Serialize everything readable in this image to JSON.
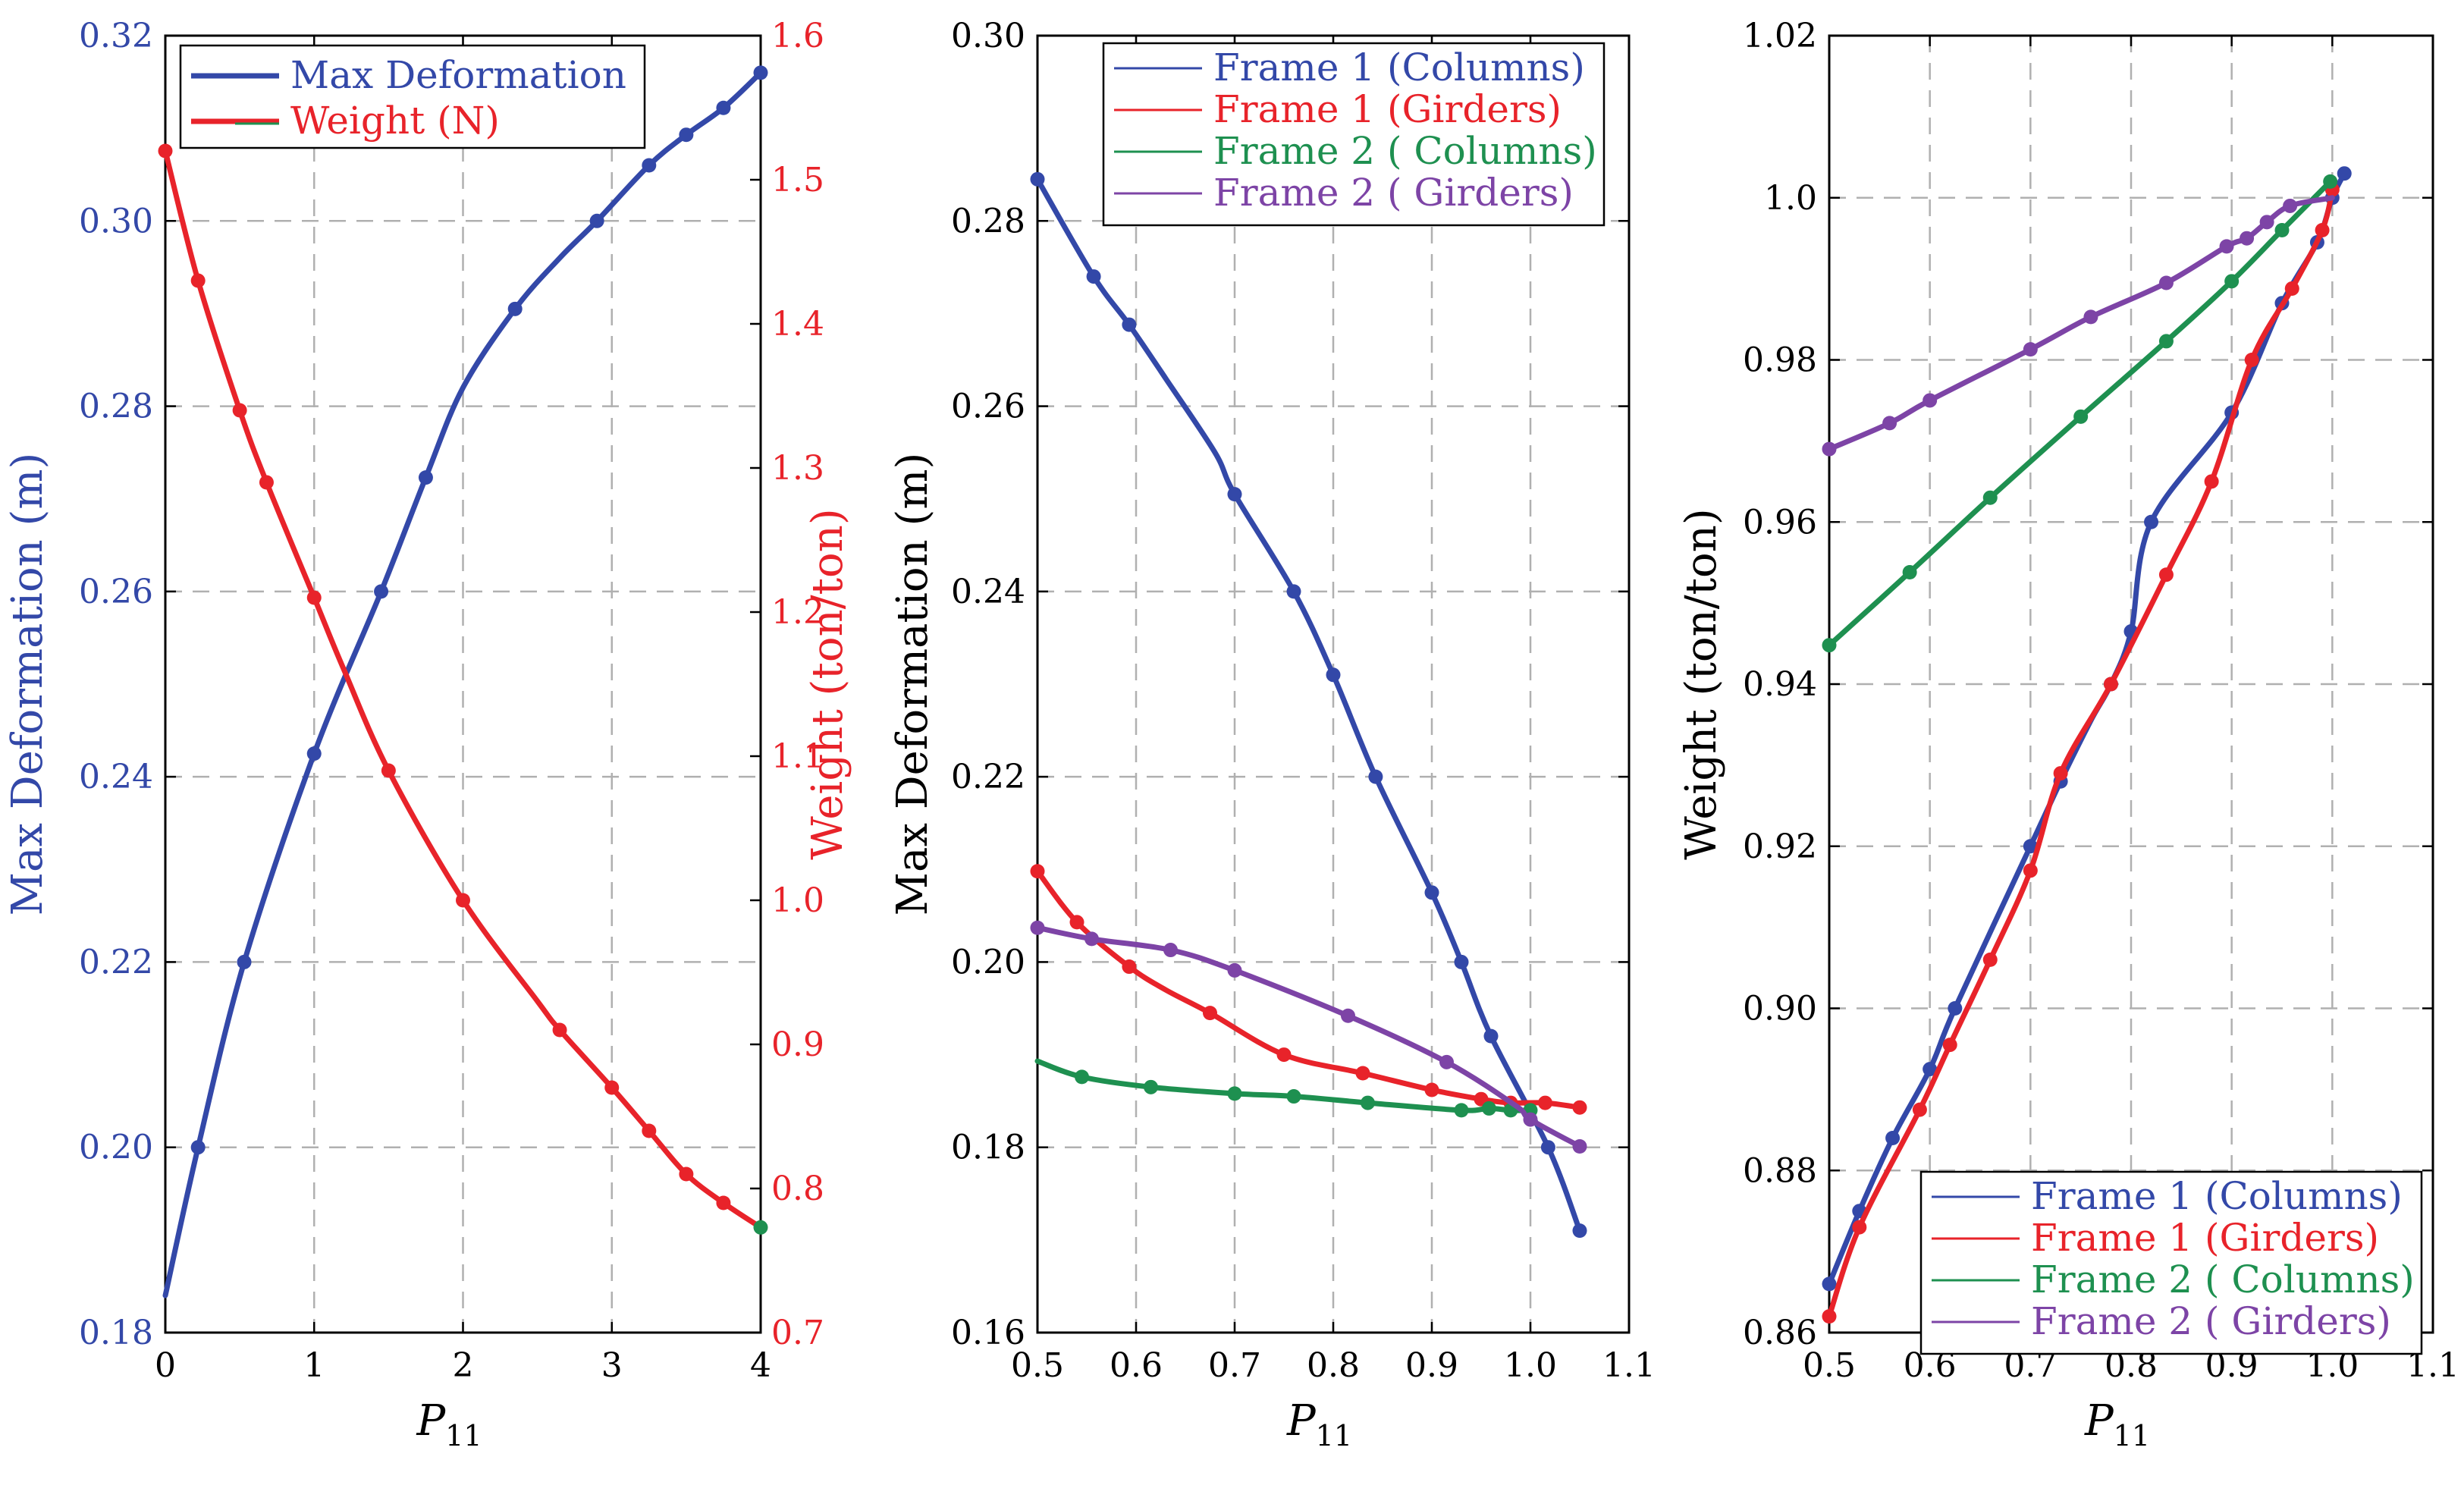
{
  "colors": {
    "blue": "#3348a8",
    "red": "#e8232a",
    "green": "#1e9050",
    "purple": "#7d44a6"
  },
  "chart_data": [
    {
      "type": "line",
      "panel": "left",
      "xlabel": "P",
      "xlabel_sub": "11",
      "ylabel": "Max Deformation (m)",
      "y2label": "Weight (ton/ton)",
      "xlim": [
        0,
        4
      ],
      "ylim": [
        0.18,
        0.32
      ],
      "y2lim": [
        0.7,
        1.6
      ],
      "xticks": [
        "0",
        "1",
        "2",
        "3",
        "4"
      ],
      "yticks": [
        "0.18",
        "0.20",
        "0.22",
        "0.24",
        "0.26",
        "0.28",
        "0.30",
        "0.32"
      ],
      "y2ticks": [
        "0.7",
        "0.8",
        "0.9",
        "1.0",
        "1.1",
        "1.2",
        "1.3",
        "1.4",
        "1.5",
        "1.6"
      ],
      "grid": true,
      "legend_position": "top-left",
      "legend": [
        "Max Deformation",
        "Weight (N)"
      ],
      "series": [
        {
          "name": "Max Deformation",
          "axis": "left",
          "color": "#3348a8",
          "x": [
            0.0,
            0.22,
            0.53,
            1.0,
            1.45,
            1.75,
            2.0,
            2.35,
            2.65,
            2.9,
            3.25,
            3.5,
            3.75,
            4.0
          ],
          "y": [
            0.184,
            0.2,
            0.22,
            0.2425,
            0.26,
            0.2723,
            0.282,
            0.2905,
            0.296,
            0.3,
            0.306,
            0.3093,
            0.3122,
            0.316
          ],
          "markers": [
            false,
            true,
            true,
            true,
            true,
            true,
            false,
            true,
            false,
            true,
            true,
            true,
            true,
            true
          ]
        },
        {
          "name": "Weight (N)",
          "axis": "right",
          "color": "#e8232a",
          "x": [
            0.0,
            0.22,
            0.5,
            0.68,
            1.0,
            1.2,
            1.5,
            2.0,
            2.5,
            2.65,
            3.0,
            3.25,
            3.5,
            3.75,
            4.0
          ],
          "y": [
            1.52,
            1.43,
            1.34,
            1.29,
            1.21,
            1.16,
            1.09,
            1.0,
            0.93,
            0.91,
            0.87,
            0.84,
            0.81,
            0.79,
            0.773
          ],
          "markers": [
            true,
            true,
            true,
            true,
            true,
            false,
            true,
            true,
            false,
            true,
            true,
            true,
            true,
            true,
            true
          ]
        }
      ],
      "end_marker_color": "#1e9050"
    },
    {
      "type": "line",
      "panel": "middle",
      "xlabel": "P",
      "xlabel_sub": "11",
      "ylabel": "Max Deformation (m)",
      "xlim": [
        0.5,
        1.1
      ],
      "ylim": [
        0.16,
        0.3
      ],
      "xticks": [
        "0.5",
        "0.6",
        "0.7",
        "0.8",
        "0.9",
        "1.0",
        "1.1"
      ],
      "yticks": [
        "0.16",
        "0.18",
        "0.20",
        "0.22",
        "0.24",
        "0.26",
        "0.28",
        "0.30"
      ],
      "grid": true,
      "legend_position": "top-right",
      "legend": [
        "Frame 1 (Columns)",
        "Frame 1 (Girders)",
        "Frame 2 ( Columns)",
        "Frame 2 ( Girders)"
      ],
      "series": [
        {
          "name": "Frame 1 (Columns)",
          "color": "#3348a8",
          "x": [
            0.5,
            0.557,
            0.593,
            0.63,
            0.68,
            0.7,
            0.76,
            0.8,
            0.843,
            0.9,
            0.93,
            0.96,
            1.018,
            1.05
          ],
          "y": [
            0.2845,
            0.274,
            0.2688,
            0.263,
            0.255,
            0.2505,
            0.24,
            0.231,
            0.22,
            0.2075,
            0.2,
            0.192,
            0.18,
            0.171
          ],
          "markers": [
            true,
            true,
            true,
            false,
            false,
            true,
            true,
            true,
            true,
            true,
            true,
            true,
            true,
            true
          ]
        },
        {
          "name": "Frame 1 (Girders)",
          "color": "#e8232a",
          "x": [
            0.5,
            0.54,
            0.593,
            0.63,
            0.675,
            0.75,
            0.83,
            0.9,
            0.95,
            0.98,
            1.015,
            1.05
          ],
          "y": [
            0.2098,
            0.2043,
            0.1995,
            0.197,
            0.1945,
            0.19,
            0.188,
            0.1862,
            0.1852,
            0.1848,
            0.1848,
            0.1843
          ],
          "markers": [
            true,
            true,
            true,
            false,
            true,
            true,
            true,
            true,
            true,
            true,
            true,
            true
          ]
        },
        {
          "name": "Frame 2 ( Columns)",
          "color": "#1e9050",
          "x": [
            0.5,
            0.545,
            0.615,
            0.7,
            0.76,
            0.835,
            0.93,
            0.958,
            0.98,
            1.0
          ],
          "y": [
            0.1893,
            0.1876,
            0.1865,
            0.1858,
            0.1855,
            0.1848,
            0.184,
            0.1842,
            0.184,
            0.184
          ],
          "markers": [
            false,
            true,
            true,
            true,
            true,
            true,
            true,
            true,
            true,
            true
          ]
        },
        {
          "name": "Frame 2 ( Girders)",
          "color": "#7d44a6",
          "x": [
            0.5,
            0.555,
            0.635,
            0.7,
            0.815,
            0.915,
            0.985,
            1.0,
            1.05
          ],
          "y": [
            0.2037,
            0.2025,
            0.2013,
            0.1991,
            0.1942,
            0.1892,
            0.1845,
            0.183,
            0.1801
          ],
          "markers": [
            true,
            true,
            true,
            true,
            true,
            true,
            false,
            true,
            true
          ]
        }
      ]
    },
    {
      "type": "line",
      "panel": "right",
      "xlabel": "P",
      "xlabel_sub": "11",
      "ylabel": "Weight (ton/ton)",
      "xlim": [
        0.5,
        1.1
      ],
      "ylim": [
        0.86,
        1.02
      ],
      "xticks": [
        "0.5",
        "0.6",
        "0.7",
        "0.8",
        "0.9",
        "1.0",
        "1.1"
      ],
      "yticks": [
        "0.86",
        "0.88",
        "0.90",
        "0.92",
        "0.94",
        "0.96",
        "0.98",
        "1.0",
        "1.02"
      ],
      "grid": true,
      "legend_position": "bottom-right",
      "legend": [
        "Frame 1 (Columns)",
        "Frame 1 (Girders)",
        "Frame 2 ( Columns)",
        "Frame 2 ( Girders)"
      ],
      "series": [
        {
          "name": "Frame 1 (Columns)",
          "color": "#3348a8",
          "x": [
            0.5,
            0.53,
            0.563,
            0.6,
            0.625,
            0.7,
            0.73,
            0.76,
            0.78,
            0.8,
            0.82,
            0.9,
            0.95,
            0.985,
            1.0,
            1.012
          ],
          "y": [
            0.866,
            0.875,
            0.884,
            0.8925,
            0.9,
            0.92,
            0.928,
            0.9355,
            0.94,
            0.9465,
            0.96,
            0.9735,
            0.987,
            0.9945,
            1.0,
            1.003
          ],
          "markers": [
            true,
            true,
            true,
            true,
            true,
            true,
            true,
            false,
            true,
            true,
            true,
            true,
            true,
            true,
            true,
            true
          ]
        },
        {
          "name": "Frame 1 (Girders)",
          "color": "#e8232a",
          "x": [
            0.5,
            0.53,
            0.59,
            0.62,
            0.66,
            0.7,
            0.73,
            0.78,
            0.835,
            0.88,
            0.92,
            0.96,
            0.99,
            1.0
          ],
          "y": [
            0.862,
            0.873,
            0.8875,
            0.8955,
            0.906,
            0.917,
            0.929,
            0.94,
            0.9535,
            0.965,
            0.98,
            0.9888,
            0.996,
            1.001
          ],
          "markers": [
            true,
            true,
            true,
            true,
            true,
            true,
            true,
            true,
            true,
            true,
            true,
            true,
            true,
            true
          ]
        },
        {
          "name": "Frame 2 ( Columns)",
          "color": "#1e9050",
          "x": [
            0.5,
            0.58,
            0.66,
            0.75,
            0.835,
            0.9,
            0.95,
            0.998
          ],
          "y": [
            0.9448,
            0.9538,
            0.963,
            0.973,
            0.9823,
            0.9897,
            0.996,
            1.002
          ],
          "markers": [
            true,
            true,
            true,
            true,
            true,
            true,
            true,
            true
          ]
        },
        {
          "name": "Frame 2 ( Girders)",
          "color": "#7d44a6",
          "x": [
            0.5,
            0.56,
            0.6,
            0.7,
            0.76,
            0.835,
            0.895,
            0.915,
            0.935,
            0.958,
            1.0
          ],
          "y": [
            0.969,
            0.9722,
            0.975,
            0.9813,
            0.9853,
            0.9895,
            0.994,
            0.995,
            0.997,
            0.999,
            1.0
          ],
          "markers": [
            true,
            true,
            true,
            true,
            true,
            true,
            true,
            true,
            true,
            true,
            false
          ]
        }
      ]
    }
  ]
}
